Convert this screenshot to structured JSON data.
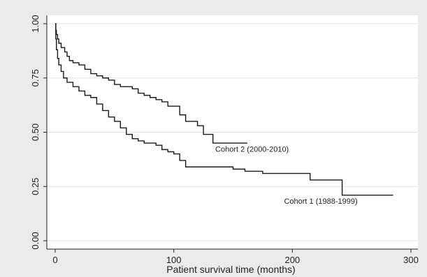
{
  "chart_data": {
    "type": "line",
    "step": true,
    "title": "",
    "xlabel": "Patient survival time (months)",
    "ylabel": "",
    "xlim": [
      0,
      300
    ],
    "ylim": [
      0,
      1
    ],
    "xticks": [
      0,
      100,
      200,
      300
    ],
    "xtick_labels": [
      "0",
      "100",
      "200",
      "300"
    ],
    "yticks": [
      0,
      0.25,
      0.5,
      0.75,
      1
    ],
    "ytick_labels": [
      "0.00",
      "0.25",
      "0.50",
      "0.75",
      "1.00"
    ],
    "grid": true,
    "legend": "none",
    "colors": {
      "background": "#ebebeb",
      "plot_area": "#ffffff",
      "grid": "#e4e4e4",
      "line": "#1a1a1a"
    },
    "series": [
      {
        "name": "Cohort 2 (2000-2010)",
        "label_at": [
          135,
          0.41
        ],
        "points": [
          [
            0,
            1.0
          ],
          [
            0.5,
            0.97
          ],
          [
            1,
            0.95
          ],
          [
            2,
            0.93
          ],
          [
            3,
            0.91
          ],
          [
            5,
            0.89
          ],
          [
            8,
            0.87
          ],
          [
            10,
            0.85
          ],
          [
            12,
            0.83
          ],
          [
            15,
            0.82
          ],
          [
            20,
            0.81
          ],
          [
            25,
            0.79
          ],
          [
            30,
            0.77
          ],
          [
            35,
            0.76
          ],
          [
            40,
            0.75
          ],
          [
            45,
            0.74
          ],
          [
            50,
            0.72
          ],
          [
            55,
            0.71
          ],
          [
            65,
            0.7
          ],
          [
            70,
            0.68
          ],
          [
            75,
            0.67
          ],
          [
            80,
            0.66
          ],
          [
            85,
            0.65
          ],
          [
            90,
            0.64
          ],
          [
            95,
            0.62
          ],
          [
            105,
            0.58
          ],
          [
            110,
            0.55
          ],
          [
            120,
            0.53
          ],
          [
            125,
            0.49
          ],
          [
            133,
            0.45
          ],
          [
            162,
            0.45
          ]
        ]
      },
      {
        "name": "Cohort 1 (1988-1999)",
        "label_at": [
          193,
          0.17
        ],
        "points": [
          [
            0,
            1.0
          ],
          [
            0.5,
            0.93
          ],
          [
            1,
            0.88
          ],
          [
            2,
            0.84
          ],
          [
            3,
            0.81
          ],
          [
            5,
            0.78
          ],
          [
            7,
            0.75
          ],
          [
            10,
            0.73
          ],
          [
            15,
            0.71
          ],
          [
            20,
            0.69
          ],
          [
            25,
            0.67
          ],
          [
            30,
            0.66
          ],
          [
            35,
            0.63
          ],
          [
            40,
            0.6
          ],
          [
            45,
            0.57
          ],
          [
            50,
            0.55
          ],
          [
            55,
            0.52
          ],
          [
            60,
            0.49
          ],
          [
            65,
            0.47
          ],
          [
            70,
            0.46
          ],
          [
            75,
            0.45
          ],
          [
            85,
            0.44
          ],
          [
            90,
            0.42
          ],
          [
            95,
            0.41
          ],
          [
            100,
            0.4
          ],
          [
            105,
            0.37
          ],
          [
            110,
            0.34
          ],
          [
            150,
            0.33
          ],
          [
            160,
            0.32
          ],
          [
            175,
            0.31
          ],
          [
            215,
            0.28
          ],
          [
            242,
            0.21
          ],
          [
            285,
            0.21
          ]
        ]
      }
    ]
  }
}
